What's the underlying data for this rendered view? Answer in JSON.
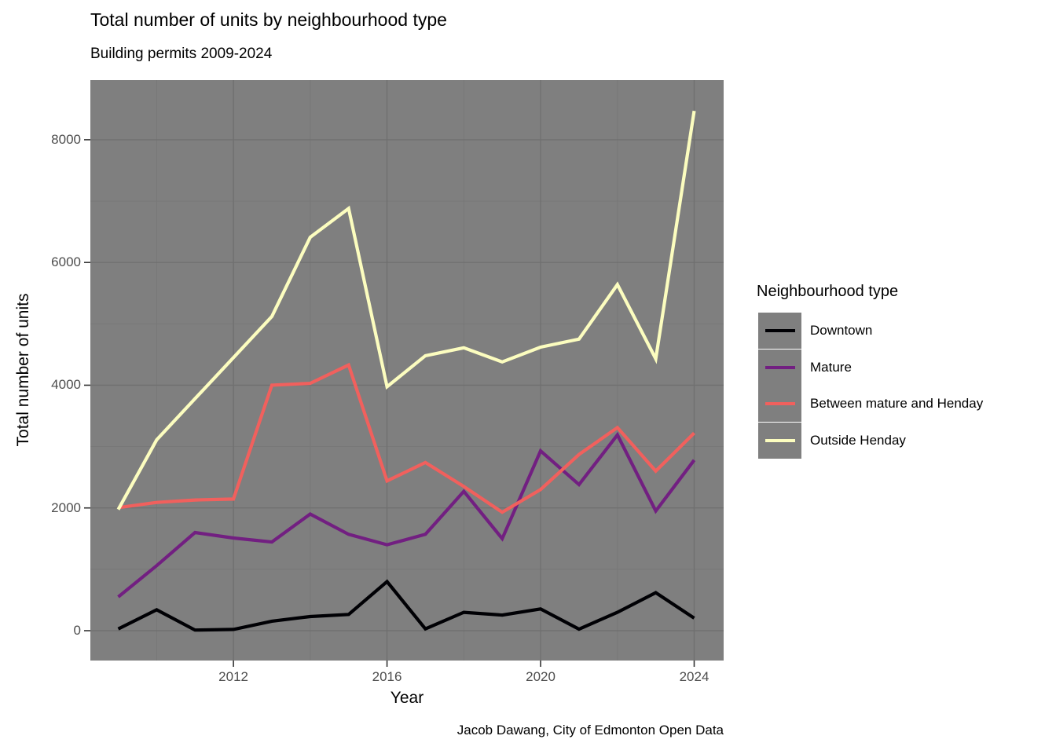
{
  "chart_data": {
    "type": "line",
    "title": "Total number of units by neighbourhood type",
    "subtitle": "Building permits 2009-2024",
    "caption": "Jacob Dawang, City of Edmonton Open Data",
    "xlabel": "Year",
    "ylabel": "Total number of units",
    "x": [
      2009,
      2010,
      2011,
      2012,
      2013,
      2014,
      2015,
      2016,
      2017,
      2018,
      2019,
      2020,
      2021,
      2022,
      2023,
      2024
    ],
    "series": [
      {
        "name": "Downtown",
        "color": "#000004",
        "values": [
          30,
          340,
          10,
          20,
          155,
          230,
          265,
          800,
          30,
          300,
          255,
          355,
          25,
          300,
          620,
          205
        ]
      },
      {
        "name": "Mature",
        "color": "#721F81",
        "values": [
          550,
          1060,
          1600,
          1510,
          1445,
          1900,
          1570,
          1400,
          1570,
          2270,
          1500,
          2930,
          2380,
          3190,
          1950,
          2780
        ]
      },
      {
        "name": "Between mature and Henday",
        "color": "#F1605D",
        "values": [
          2005,
          2090,
          2130,
          2145,
          4000,
          4030,
          4330,
          2440,
          2740,
          2350,
          1930,
          2300,
          2870,
          3310,
          2600,
          3220
        ]
      },
      {
        "name": "Outside Henday",
        "color": "#FCFDBF",
        "values": [
          1975,
          3110,
          3780,
          4450,
          5120,
          6410,
          6880,
          3975,
          4480,
          4610,
          4380,
          4620,
          4750,
          5640,
          4430,
          8470
        ]
      }
    ],
    "x_ticks": [
      2012,
      2016,
      2020,
      2024
    ],
    "x_minor_ticks": [
      2010,
      2014,
      2018,
      2022
    ],
    "y_ticks": [
      0,
      2000,
      4000,
      6000,
      8000
    ],
    "y_minor_ticks": [
      1000,
      3000,
      5000,
      7000
    ],
    "x_range": [
      2009,
      2024
    ],
    "y_range": [
      0,
      8470
    ],
    "grid": true,
    "legend": {
      "title": "Neighbourhood type",
      "position": "right"
    },
    "colors": {
      "panel_bg": "#7F7F7F",
      "grid_major": "#707070",
      "grid_minor": "#777777",
      "tick_mark": "#333333",
      "tick_label": "#4D4D4D"
    }
  }
}
